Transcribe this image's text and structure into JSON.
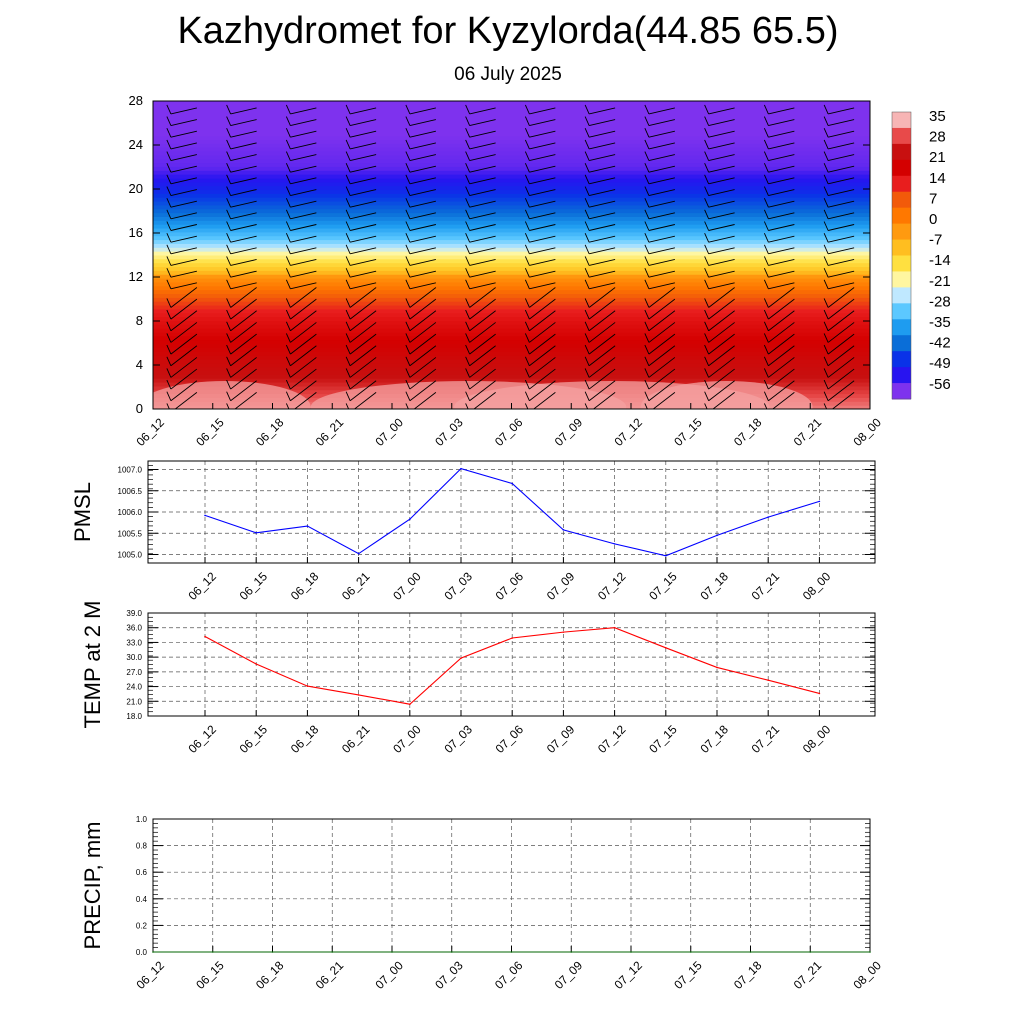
{
  "title": "Kazhydromet for Kyzylorda(44.85 65.5)",
  "subtitle": "06 July 2025",
  "chart_data": [
    {
      "type": "heatmap",
      "name": "vertical-temperature-section",
      "x_tick_labels": [
        "06_12",
        "06_15",
        "06_18",
        "06_21",
        "07_00",
        "07_03",
        "07_06",
        "07_09",
        "07_12",
        "07_15",
        "07_18",
        "07_21",
        "08_00"
      ],
      "ylim": [
        0,
        28
      ],
      "y_ticks": [
        0,
        4,
        8,
        12,
        16,
        20,
        24,
        28
      ],
      "colorbar_labels": [
        "35",
        "28",
        "21",
        "14",
        "7",
        "0",
        "-7",
        "-14",
        "-21",
        "-28",
        "-35",
        "-42",
        "-49",
        "-56"
      ],
      "colorbar_colors": [
        "#f7b5b5",
        "#e84a4a",
        "#c81010",
        "#d40000",
        "#e81e1e",
        "#f25a0a",
        "#ff7800",
        "#ff9a10",
        "#ffbe20",
        "#ffe040",
        "#fff6a0",
        "#bfe8ff",
        "#5cc8ff",
        "#1e9cf0",
        "#0a6ed8",
        "#0a32e8",
        "#2814f0",
        "#7e32ee"
      ],
      "levels_profile": [
        {
          "y": 0,
          "t": 33
        },
        {
          "y": 4,
          "t": 26
        },
        {
          "y": 8,
          "t": 17
        },
        {
          "y": 12,
          "t": 4
        },
        {
          "y": 14,
          "t": -12
        },
        {
          "y": 16,
          "t": -24
        },
        {
          "y": 18,
          "t": -36
        },
        {
          "y": 20,
          "t": -48
        },
        {
          "y": 22,
          "t": -56
        },
        {
          "y": 28,
          "t": -60
        }
      ],
      "has_wind_barbs": true
    },
    {
      "type": "line",
      "name": "pmsl",
      "ylabel": "PMSL",
      "x": [
        "06_12",
        "06_15",
        "06_18",
        "06_21",
        "07_00",
        "07_03",
        "07_06",
        "07_09",
        "07_12",
        "07_15",
        "07_18",
        "07_21",
        "08_00"
      ],
      "series": [
        {
          "values": [
            1005.92,
            1005.51,
            1005.67,
            1005.02,
            1005.83,
            1007.02,
            1006.67,
            1005.58,
            1005.25,
            1004.97,
            1005.45,
            1005.88,
            1006.25
          ],
          "color": "#0000ff"
        }
      ],
      "ylim": [
        1004.8,
        1007.2
      ],
      "y_ticks": [
        1005.0,
        1005.5,
        1006.0,
        1006.5,
        1007.0
      ],
      "y_tick_labels": [
        "1005.0",
        "1005.5",
        "1006.0",
        "1006.5",
        "1007.0"
      ],
      "grid": true
    },
    {
      "type": "line",
      "name": "temp-2m",
      "ylabel": "TEMP at 2 M",
      "x": [
        "06_12",
        "06_15",
        "06_18",
        "06_21",
        "07_00",
        "07_03",
        "07_06",
        "07_09",
        "07_12",
        "07_15",
        "07_18",
        "07_21",
        "08_00"
      ],
      "series": [
        {
          "values": [
            34.2,
            28.6,
            24.1,
            22.3,
            20.4,
            29.8,
            33.9,
            35.1,
            36.0,
            31.9,
            27.9,
            25.3,
            22.6
          ],
          "color": "#ff0000"
        }
      ],
      "ylim": [
        18,
        39
      ],
      "y_ticks": [
        18,
        21,
        24,
        27,
        30,
        33,
        36,
        39
      ],
      "y_tick_labels": [
        "18.0",
        "21.0",
        "24.0",
        "27.0",
        "30.0",
        "33.0",
        "36.0",
        "39.0"
      ],
      "grid": true
    },
    {
      "type": "line",
      "name": "precip",
      "ylabel": "PRECIP, mm",
      "x_tick_labels": [
        "06_12",
        "06_15",
        "06_18",
        "06_21",
        "07_00",
        "07_03",
        "07_06",
        "07_09",
        "07_12",
        "07_15",
        "07_18",
        "07_21",
        "08_00"
      ],
      "series": [
        {
          "values": [
            0,
            0,
            0,
            0,
            0,
            0,
            0,
            0,
            0,
            0,
            0,
            0,
            0
          ],
          "color": "#006400"
        }
      ],
      "ylim": [
        0,
        1
      ],
      "y_ticks": [
        0,
        0.2,
        0.4,
        0.6,
        0.8,
        1.0
      ],
      "y_tick_labels": [
        "0.0",
        "0.2",
        "0.4",
        "0.6",
        "0.8",
        "1.0"
      ],
      "grid": true
    }
  ]
}
